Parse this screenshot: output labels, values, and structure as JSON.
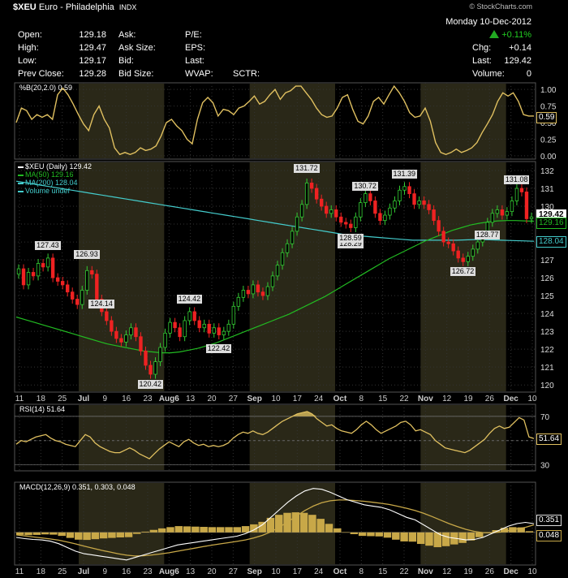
{
  "header": {
    "symbol": "$XEU",
    "name": "Euro - Philadelphia",
    "exchange": "INDX",
    "watermark": "© StockCharts.com",
    "date": "Monday 10-Dec-2012",
    "change_pct": "+0.11%",
    "up_color": "#22aa22",
    "quote_left": [
      {
        "label": "Open:",
        "value": "129.18"
      },
      {
        "label": "High:",
        "value": "129.47"
      },
      {
        "label": "Low:",
        "value": "129.17"
      },
      {
        "label": "Prev Close:",
        "value": "129.28"
      }
    ],
    "quote_mid": [
      {
        "label": "Ask:",
        "value": ""
      },
      {
        "label": "Ask Size:",
        "value": ""
      },
      {
        "label": "Bid:",
        "value": ""
      },
      {
        "label": "Bid Size:",
        "value": ""
      }
    ],
    "quote_mid2": [
      {
        "label": "P/E:"
      },
      {
        "label": "EPS:"
      },
      {
        "label": "Last:"
      },
      {
        "label": "WVAP:"
      }
    ],
    "sctr_label": "SCTR:",
    "quote_right": [
      {
        "label": "Chg:",
        "value": "+0.14"
      },
      {
        "label": "Last:",
        "value": "129.42"
      },
      {
        "label": "Volume:",
        "value": "0"
      }
    ]
  },
  "chart_data": [
    {
      "type": "line",
      "panel": "pctb",
      "legend": "%B(20,2.0) 0.59",
      "last_value": "0.59",
      "color": "#e0c060",
      "ylim": [
        -0.05,
        1.1
      ],
      "yticks": [
        "1.00",
        "0.75",
        "0.50",
        "0.25",
        "0.00"
      ],
      "ytick_values": [
        1.0,
        0.75,
        0.5,
        0.25,
        0.0
      ],
      "values": [
        0.5,
        0.72,
        0.68,
        0.55,
        0.62,
        0.58,
        0.62,
        0.55,
        0.92,
        1.02,
        0.92,
        0.78,
        0.62,
        0.48,
        0.38,
        0.62,
        0.75,
        0.55,
        0.42,
        0.12,
        0.02,
        0.05,
        0.02,
        0.05,
        0.12,
        0.08,
        0.1,
        0.15,
        0.3,
        0.5,
        0.55,
        0.45,
        0.38,
        0.25,
        0.18,
        0.55,
        0.8,
        0.88,
        0.8,
        0.6,
        0.7,
        0.68,
        0.62,
        0.72,
        0.75,
        0.82,
        0.9,
        0.78,
        0.82,
        0.92,
        1.0,
        0.85,
        0.95,
        0.98,
        1.05,
        1.05,
        0.95,
        0.85,
        0.72,
        0.62,
        0.58,
        0.6,
        0.72,
        0.88,
        0.92,
        0.7,
        0.52,
        0.48,
        0.6,
        0.82,
        0.88,
        0.78,
        0.92,
        1.05,
        0.95,
        0.82,
        0.65,
        0.58,
        0.6,
        0.72,
        0.52,
        0.2,
        0.05,
        0.02,
        0.05,
        0.1,
        0.05,
        0.08,
        0.12,
        0.2,
        0.35,
        0.48,
        0.62,
        0.82,
        0.95,
        0.9,
        0.95,
        0.82,
        0.62,
        0.6,
        0.6
      ]
    },
    {
      "type": "candlestick",
      "panel": "price",
      "legend": [
        {
          "label": "$XEU (Daily) 129.42",
          "color": "#ffffff"
        },
        {
          "label": "MA(50) 129.16",
          "color": "#22bb22"
        },
        {
          "label": "MA(200) 128.04",
          "color": "#44cccc"
        },
        {
          "label": "Volume undef",
          "color": "#44cccc"
        }
      ],
      "ylim": [
        119.6,
        132.5
      ],
      "yticks": [
        "132",
        "131",
        "130",
        "129",
        "128",
        "127",
        "126",
        "125",
        "124",
        "123",
        "122",
        "121",
        "120"
      ],
      "ytick_values": [
        132,
        131,
        130,
        129,
        128,
        127,
        126,
        125,
        124,
        123,
        122,
        121,
        120
      ],
      "closes": [
        126.5,
        125.6,
        126.3,
        126.1,
        126.8,
        126.6,
        127.1,
        126.0,
        125.8,
        125.6,
        125.2,
        124.8,
        124.5,
        125.3,
        126.4,
        126.2,
        124.8,
        124.1,
        123.6,
        123.0,
        122.6,
        122.4,
        122.8,
        123.2,
        122.7,
        121.9,
        121.1,
        120.6,
        121.3,
        122.1,
        122.9,
        123.5,
        123.2,
        122.7,
        123.6,
        124.1,
        123.6,
        123.2,
        123.4,
        122.9,
        123.2,
        122.8,
        123.0,
        123.4,
        124.4,
        124.9,
        125.3,
        125.1,
        125.6,
        125.2,
        125.0,
        125.5,
        126.1,
        126.7,
        127.4,
        127.9,
        128.6,
        129.4,
        130.1,
        131.3,
        131.0,
        130.4,
        130.0,
        129.6,
        129.8,
        129.4,
        129.1,
        129.0,
        128.8,
        129.4,
        130.2,
        130.7,
        130.3,
        129.6,
        129.2,
        129.5,
        129.9,
        130.3,
        130.9,
        131.1,
        130.7,
        130.1,
        130.3,
        130.1,
        129.8,
        129.2,
        128.6,
        128.0,
        127.9,
        127.5,
        127.1,
        126.9,
        127.2,
        127.6,
        128.0,
        128.4,
        129.1,
        129.6,
        129.8,
        129.5,
        129.7,
        130.3,
        131.0,
        130.8,
        129.3,
        129.4
      ],
      "ma50": [
        123.8,
        123.65,
        123.5,
        123.35,
        123.2,
        123.05,
        122.9,
        122.75,
        122.6,
        122.45,
        122.3,
        122.2,
        122.1,
        122.0,
        121.9,
        121.85,
        121.8,
        121.8,
        121.85,
        121.95,
        122.05,
        122.2,
        122.35,
        122.55,
        122.75,
        122.95,
        123.15,
        123.35,
        123.55,
        123.75,
        123.95,
        124.2,
        124.45,
        124.7,
        124.95,
        125.25,
        125.55,
        125.85,
        126.15,
        126.45,
        126.75,
        127.05,
        127.3,
        127.55,
        127.8,
        128.05,
        128.25,
        128.45,
        128.65,
        128.8,
        128.95,
        129.05,
        129.12,
        129.18,
        129.2,
        129.2,
        129.18,
        129.16
      ],
      "ma200": [
        131.4,
        131.3,
        131.2,
        131.1,
        131.0,
        130.9,
        130.8,
        130.7,
        130.6,
        130.5,
        130.4,
        130.3,
        130.2,
        130.1,
        130.0,
        129.9,
        129.8,
        129.7,
        129.6,
        129.5,
        129.4,
        129.3,
        129.2,
        129.1,
        129.0,
        128.9,
        128.8,
        128.7,
        128.6,
        128.5,
        128.4,
        128.35,
        128.3,
        128.25,
        128.2,
        128.15,
        128.1,
        128.1,
        128.1,
        128.1,
        128.1,
        128.12,
        128.14,
        128.12,
        128.1,
        128.08,
        128.06,
        128.04
      ],
      "annotations": [
        {
          "label": "127.43",
          "value": 127.43
        },
        {
          "label": "126.93",
          "value": 126.93
        },
        {
          "label": "124.14",
          "value": 124.14
        },
        {
          "label": "120.42",
          "value": 120.42
        },
        {
          "label": "124.42",
          "value": 124.42
        },
        {
          "label": "122.42",
          "value": 122.42
        },
        {
          "label": "131.72",
          "value": 131.72
        },
        {
          "label": "128.29",
          "value": 128.29
        },
        {
          "label": "130.72",
          "value": 130.72
        },
        {
          "label": "128.59",
          "value": 128.59
        },
        {
          "label": "131.39",
          "value": 131.39
        },
        {
          "label": "126.72",
          "value": 126.72
        },
        {
          "label": "131.08",
          "value": 131.08
        },
        {
          "label": "128.77",
          "value": 128.77
        }
      ],
      "right_tags": [
        {
          "label": "129.42",
          "value": 129.42
        },
        {
          "label": "129.16",
          "value": 129.16
        },
        {
          "label": "128.04",
          "value": 128.04
        }
      ]
    },
    {
      "type": "line",
      "panel": "rsi",
      "legend": "RSI(14) 51.64",
      "last_value": "51.64",
      "color": "#e0c060",
      "ylim": [
        25,
        80
      ],
      "yticks": [
        "70",
        "50",
        "30"
      ],
      "ytick_values": [
        70,
        50,
        30
      ],
      "values": [
        47,
        50,
        49,
        51,
        53,
        54,
        55,
        52,
        50,
        49,
        47,
        46,
        45,
        50,
        55,
        53,
        48,
        45,
        43,
        41,
        40,
        40,
        42,
        44,
        42,
        39,
        37,
        35,
        39,
        43,
        46,
        49,
        47,
        45,
        49,
        51,
        48,
        46,
        47,
        45,
        46,
        45,
        46,
        48,
        52,
        55,
        57,
        56,
        58,
        56,
        55,
        57,
        60,
        63,
        66,
        68,
        70,
        72,
        73,
        74,
        72,
        68,
        65,
        62,
        63,
        60,
        58,
        57,
        56,
        59,
        63,
        66,
        63,
        59,
        56,
        58,
        60,
        62,
        65,
        66,
        63,
        58,
        59,
        57,
        55,
        50,
        47,
        44,
        43,
        42,
        41,
        40,
        42,
        45,
        48,
        51,
        56,
        60,
        62,
        60,
        61,
        65,
        69,
        67,
        53,
        51.64
      ]
    },
    {
      "type": "line",
      "panel": "macd",
      "legend": "MACD(12,26,9) 0.351, 0.303, 0.048",
      "tags": [
        "0.351",
        "0.048"
      ],
      "ylim": [
        -1.3,
        2.0
      ],
      "zero": 0,
      "macd": [
        -0.2,
        -0.25,
        -0.28,
        -0.3,
        -0.35,
        -0.45,
        -0.6,
        -0.75,
        -0.85,
        -0.9,
        -0.95,
        -1.0,
        -1.05,
        -1.1,
        -1.0,
        -0.9,
        -0.8,
        -0.7,
        -0.6,
        -0.5,
        -0.45,
        -0.4,
        -0.35,
        -0.3,
        -0.25,
        -0.2,
        -0.15,
        -0.05,
        0.1,
        0.3,
        0.6,
        0.9,
        1.2,
        1.45,
        1.65,
        1.75,
        1.72,
        1.6,
        1.45,
        1.3,
        1.2,
        1.1,
        1.05,
        1.0,
        0.9,
        0.75,
        0.6,
        0.5,
        0.3,
        0.1,
        -0.1,
        -0.2,
        -0.25,
        -0.3,
        -0.28,
        -0.2,
        -0.05,
        0.1,
        0.25,
        0.35,
        0.4,
        0.351
      ],
      "signal": [
        -0.1,
        -0.14,
        -0.18,
        -0.22,
        -0.26,
        -0.31,
        -0.38,
        -0.46,
        -0.55,
        -0.63,
        -0.71,
        -0.78,
        -0.85,
        -0.91,
        -0.94,
        -0.93,
        -0.9,
        -0.86,
        -0.81,
        -0.75,
        -0.69,
        -0.63,
        -0.57,
        -0.51,
        -0.46,
        -0.41,
        -0.36,
        -0.3,
        -0.22,
        -0.12,
        0.02,
        0.2,
        0.42,
        0.65,
        0.87,
        1.05,
        1.18,
        1.26,
        1.29,
        1.29,
        1.27,
        1.24,
        1.2,
        1.16,
        1.11,
        1.04,
        0.96,
        0.87,
        0.76,
        0.63,
        0.49,
        0.35,
        0.23,
        0.12,
        0.04,
        -0.01,
        -0.02,
        0.01,
        0.07,
        0.14,
        0.2,
        0.303
      ],
      "histogram": [
        -0.1,
        -0.11,
        -0.1,
        -0.08,
        -0.09,
        -0.14,
        -0.22,
        -0.29,
        -0.3,
        -0.27,
        -0.24,
        -0.22,
        -0.2,
        -0.19,
        -0.06,
        0.03,
        0.1,
        0.16,
        0.21,
        0.25,
        0.24,
        0.23,
        0.22,
        0.21,
        0.21,
        0.21,
        0.21,
        0.25,
        0.32,
        0.42,
        0.58,
        0.7,
        0.78,
        0.8,
        0.78,
        0.7,
        0.54,
        0.34,
        0.16,
        0.01,
        -0.07,
        -0.14,
        -0.15,
        -0.16,
        -0.21,
        -0.29,
        -0.36,
        -0.37,
        -0.46,
        -0.53,
        -0.59,
        -0.55,
        -0.48,
        -0.42,
        -0.32,
        -0.19,
        -0.03,
        0.09,
        0.18,
        0.21,
        0.2,
        0.048
      ]
    }
  ],
  "x_axis": {
    "labels": [
      "11",
      "18",
      "25",
      "Jul",
      "9",
      "16",
      "23",
      "Aug6",
      "13",
      "20",
      "27",
      "Sep",
      "10",
      "17",
      "24",
      "Oct",
      "8",
      "15",
      "22",
      "Nov",
      "12",
      "19",
      "26",
      "Dec",
      "10"
    ],
    "major": [
      "Jul",
      "Aug6",
      "Sep",
      "Oct",
      "Nov",
      "Dec"
    ]
  }
}
